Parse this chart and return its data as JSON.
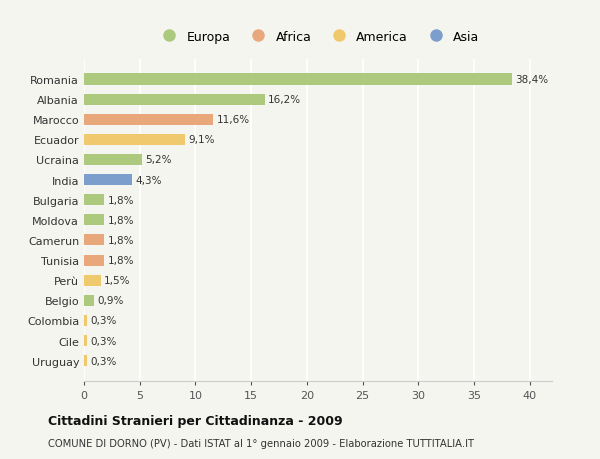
{
  "categories": [
    "Romania",
    "Albania",
    "Marocco",
    "Ecuador",
    "Ucraina",
    "India",
    "Bulgaria",
    "Moldova",
    "Camerun",
    "Tunisia",
    "Perù",
    "Belgio",
    "Colombia",
    "Cile",
    "Uruguay"
  ],
  "values": [
    38.4,
    16.2,
    11.6,
    9.1,
    5.2,
    4.3,
    1.8,
    1.8,
    1.8,
    1.8,
    1.5,
    0.9,
    0.3,
    0.3,
    0.3
  ],
  "labels": [
    "38,4%",
    "16,2%",
    "11,6%",
    "9,1%",
    "5,2%",
    "4,3%",
    "1,8%",
    "1,8%",
    "1,8%",
    "1,8%",
    "1,5%",
    "0,9%",
    "0,3%",
    "0,3%",
    "0,3%"
  ],
  "colors": [
    "#adc97e",
    "#adc97e",
    "#e8a87c",
    "#f0c96e",
    "#adc97e",
    "#7b9ecc",
    "#adc97e",
    "#adc97e",
    "#e8a87c",
    "#e8a87c",
    "#f0c96e",
    "#adc97e",
    "#f0c96e",
    "#f0c96e",
    "#f0c96e"
  ],
  "legend_labels": [
    "Europa",
    "Africa",
    "America",
    "Asia"
  ],
  "legend_colors": [
    "#adc97e",
    "#e8a87c",
    "#f0c96e",
    "#7b9ecc"
  ],
  "title": "Cittadini Stranieri per Cittadinanza - 2009",
  "subtitle": "COMUNE DI DORNO (PV) - Dati ISTAT al 1° gennaio 2009 - Elaborazione TUTTITALIA.IT",
  "xlim": [
    0,
    42
  ],
  "xticks": [
    0,
    5,
    10,
    15,
    20,
    25,
    30,
    35,
    40
  ],
  "background_color": "#f5f5f0",
  "grid_color": "#ffffff",
  "bar_height": 0.55
}
